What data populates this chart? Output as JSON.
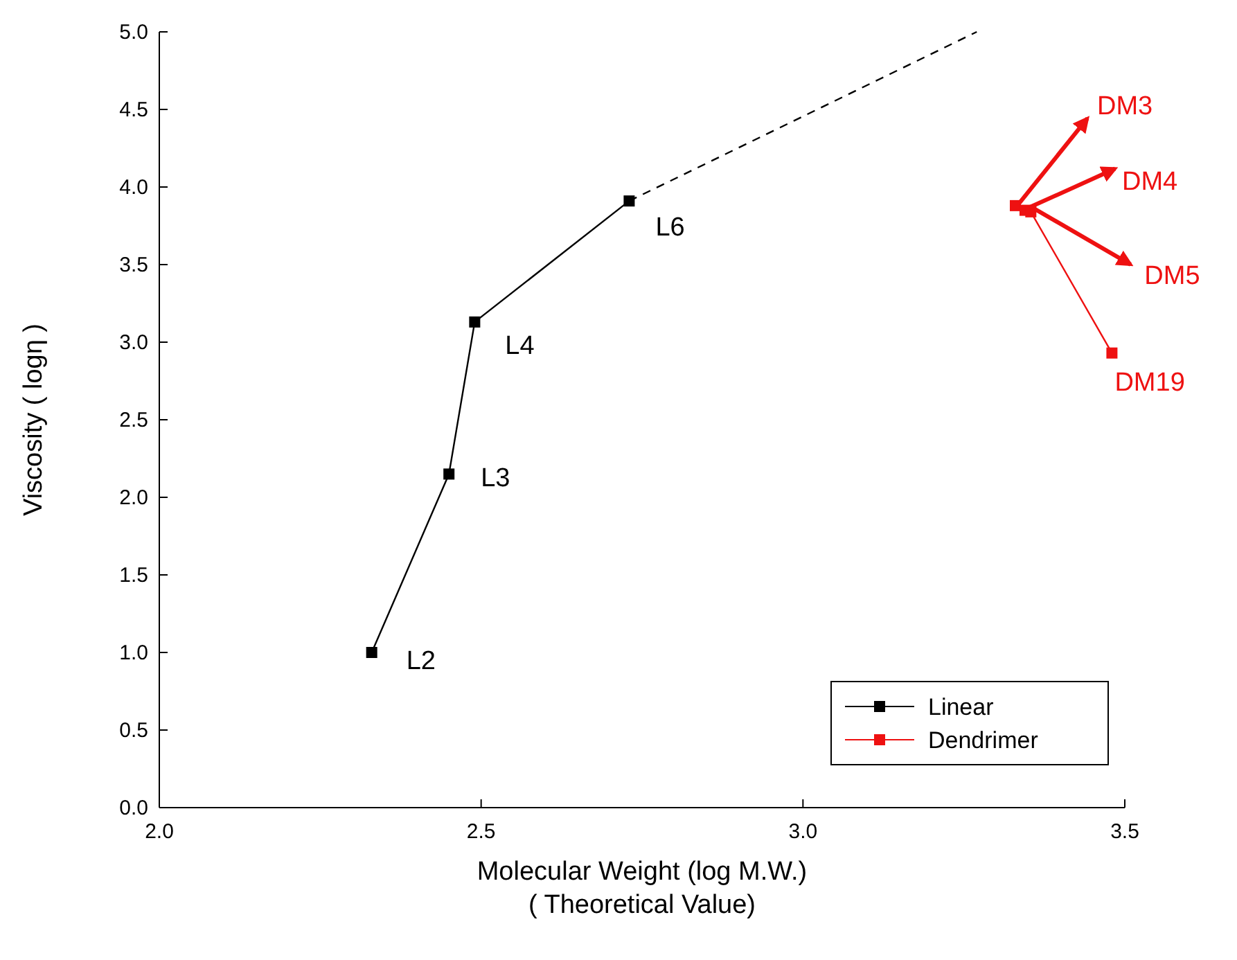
{
  "chart_data": {
    "type": "line",
    "xlabel": "Molecular Weight  (log M.W.)\n( Theoretical Value)",
    "ylabel": "Viscosity ( logη )",
    "xlim": [
      2.0,
      3.5
    ],
    "xticks": [
      {
        "value": 2,
        "label": "2.0"
      },
      2.5,
      {
        "value": 3,
        "label": "3.0"
      },
      3.5
    ],
    "ylim": [
      0,
      5
    ],
    "yticks": [
      {
        "value": 0,
        "label": "0.0"
      },
      0.5,
      {
        "value": 1,
        "label": "1.0"
      },
      1.5,
      {
        "value": 2,
        "label": "2.0"
      },
      2.5,
      {
        "value": 3,
        "label": "3.0"
      },
      3.5,
      {
        "value": 4,
        "label": "4.0"
      },
      4.5,
      {
        "value": 5,
        "label": "5.0"
      }
    ],
    "marker": "square",
    "legend": "bottom right",
    "grid": false,
    "series": [
      {
        "name": "Linear",
        "color": "#000000",
        "x": [
          2.33,
          2.45,
          2.49,
          2.73
        ],
        "values": [
          1.0,
          2.15,
          3.13,
          3.91
        ]
      },
      {
        "name": "Dendrimer",
        "color": "#ee1111",
        "x": [
          3.33,
          3.345,
          3.354,
          3.48
        ],
        "values": [
          3.88,
          3.85,
          3.84,
          2.93
        ]
      },
      {
        "type": "line",
        "color": "#000000",
        "line_style": "dashed",
        "marker": "none",
        "x": [
          2.73,
          3.27
        ],
        "values": [
          3.91,
          5.0
        ]
      }
    ],
    "annotations": [
      {
        "text": "L2",
        "x": 2.33,
        "y": 1.0
      },
      {
        "text": "L3",
        "x": 2.45,
        "y": 2.15
      },
      {
        "text": "L4",
        "x": 2.49,
        "y": 3.13
      },
      {
        "text": "L6",
        "x": 2.73,
        "y": 3.91
      },
      {
        "text": "DM3",
        "x": 3.33,
        "y": 3.88
      },
      {
        "text": "DM4",
        "x": 3.345,
        "y": 3.85
      },
      {
        "text": "DM5",
        "x": 3.354,
        "y": 3.84
      },
      {
        "text": "DM19",
        "x": 3.48,
        "y": 2.93
      }
    ]
  }
}
